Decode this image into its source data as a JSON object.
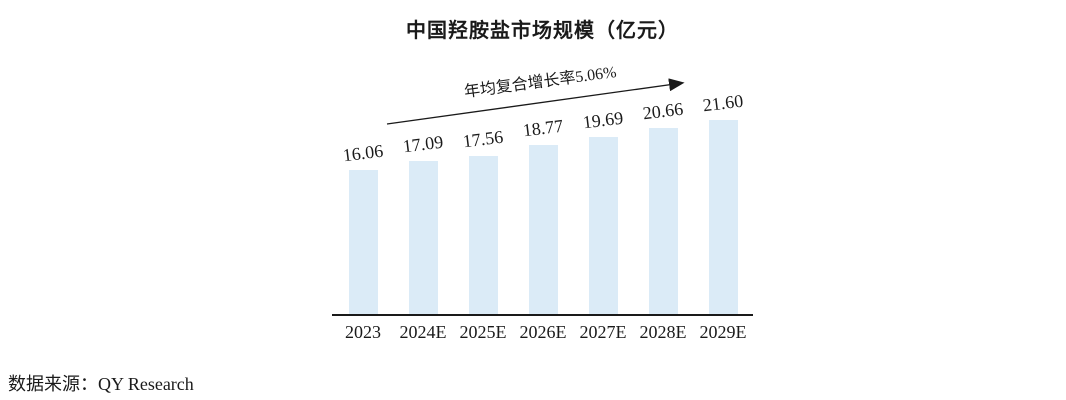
{
  "footer": {
    "source": "数据来源：QY Research"
  },
  "chart_data": {
    "type": "bar",
    "title": "中国羟胺盐市场规模（亿元）",
    "annotation": "年均复合增长率5.06%",
    "categories": [
      "2023",
      "2024E",
      "2025E",
      "2026E",
      "2027E",
      "2028E",
      "2029E"
    ],
    "values": [
      16.06,
      17.09,
      17.56,
      18.77,
      19.69,
      20.66,
      21.6
    ],
    "value_labels": [
      "16.06",
      "17.09",
      "17.56",
      "18.77",
      "19.69",
      "20.66",
      "21.60"
    ],
    "xlabel": "",
    "ylabel": "",
    "ylim": [
      0,
      22
    ],
    "grid": false,
    "legend": "none",
    "bar_color": "#dbebf7",
    "axis_color": "#1a1a1a",
    "text_color": "#1a1a1a"
  }
}
